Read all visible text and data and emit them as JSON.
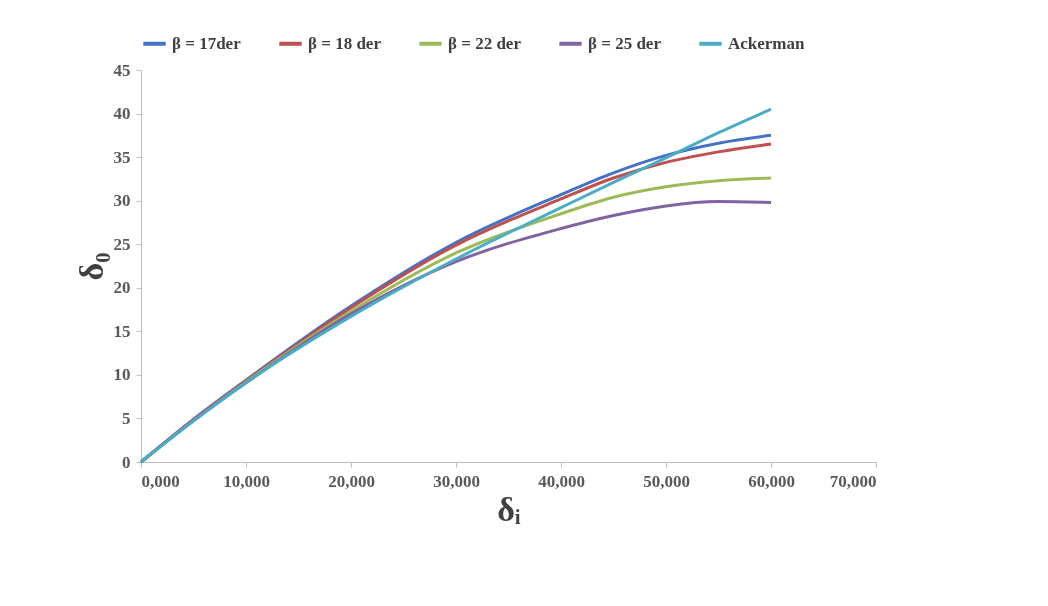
{
  "chart_data": {
    "type": "line",
    "xlabel": "δᵢ",
    "ylabel": "δ₀",
    "x": [
      0,
      5000,
      10000,
      20000,
      30000,
      40000,
      45000,
      50000,
      55000,
      60000
    ],
    "xlim": [
      0,
      70000
    ],
    "xticks": [
      {
        "value": 0,
        "label": "0,000"
      },
      {
        "value": 10000,
        "label": "10,000"
      },
      {
        "value": 20000,
        "label": "20,000"
      },
      {
        "value": 30000,
        "label": "30,000"
      },
      {
        "value": 40000,
        "label": "40,000"
      },
      {
        "value": 50000,
        "label": "50,000"
      },
      {
        "value": 60000,
        "label": "60,000"
      },
      {
        "value": 70000,
        "label": "70,000"
      }
    ],
    "ylim": [
      0,
      45
    ],
    "yticks": [
      0,
      5,
      10,
      15,
      20,
      25,
      30,
      35,
      40,
      45
    ],
    "grid": false,
    "legend": "top",
    "marker": "none",
    "line_style": "solid",
    "series": [
      {
        "name": "β = 17der",
        "color": "#4472c4",
        "values": [
          0,
          4.9,
          9.4,
          17.9,
          25.2,
          30.7,
          33.2,
          35.2,
          36.6,
          37.5
        ]
      },
      {
        "name": "β = 18 der",
        "color": "#c0504d",
        "values": [
          0,
          4.9,
          9.3,
          17.7,
          24.9,
          30.2,
          32.6,
          34.4,
          35.6,
          36.5
        ]
      },
      {
        "name": "β = 22 der",
        "color": "#9bbb59",
        "values": [
          0,
          4.8,
          9.2,
          17.3,
          24.0,
          28.5,
          30.4,
          31.6,
          32.3,
          32.6
        ]
      },
      {
        "name": "β = 25 der",
        "color": "#8064a2",
        "values": [
          0,
          4.8,
          9.1,
          17.0,
          23.0,
          26.8,
          28.3,
          29.4,
          29.9,
          29.8
        ]
      },
      {
        "name": "Ackerman",
        "color": "#4bacc6",
        "values": [
          0,
          4.7,
          9.1,
          16.7,
          23.3,
          29.2,
          32.1,
          34.9,
          37.8,
          40.5
        ]
      }
    ]
  }
}
